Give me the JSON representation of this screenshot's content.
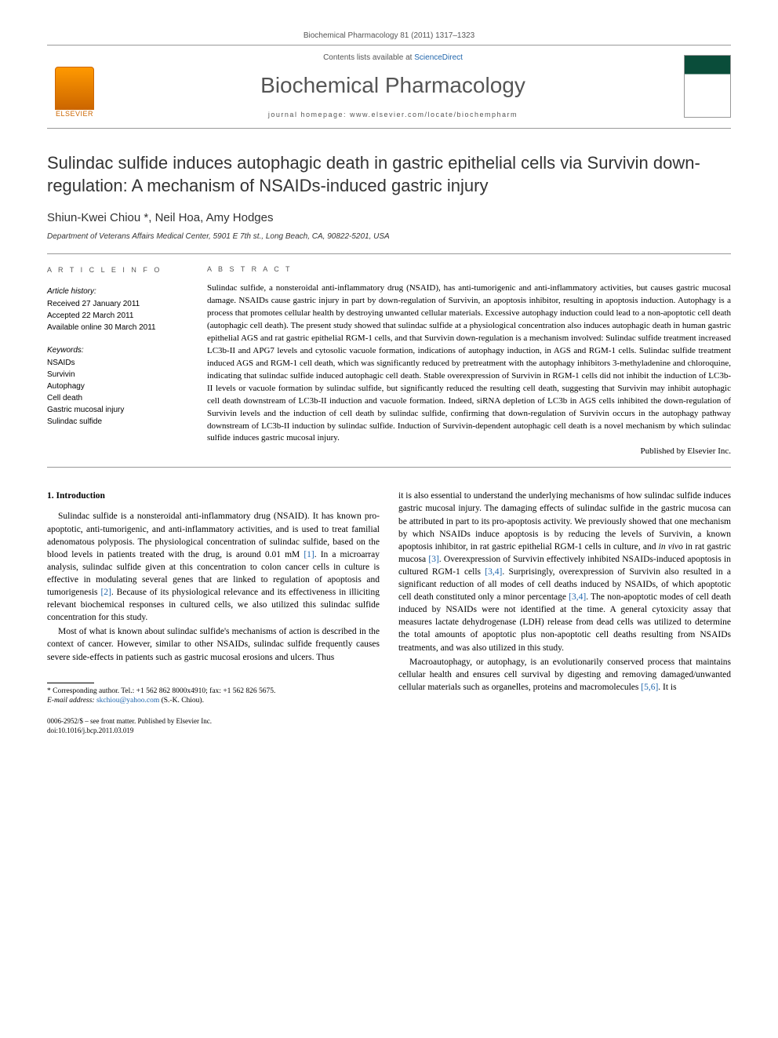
{
  "header": {
    "journal_ref_line": "Biochemical Pharmacology 81 (2011) 1317–1323",
    "contents_prefix": "Contents lists available at ",
    "contents_link": "ScienceDirect",
    "journal_name": "Biochemical Pharmacology",
    "homepage_prefix": "journal homepage: ",
    "homepage_url": "www.elsevier.com/locate/biochempharm",
    "elsevier_label": "ELSEVIER"
  },
  "title": "Sulindac sulfide induces autophagic death in gastric epithelial cells via Survivin down-regulation: A mechanism of NSAIDs-induced gastric injury",
  "authors": "Shiun-Kwei Chiou *, Neil Hoa, Amy Hodges",
  "affiliation": "Department of Veterans Affairs Medical Center, 5901 E 7th st., Long Beach, CA, 90822-5201, USA",
  "info": {
    "heading": "A R T I C L E   I N F O",
    "history_label": "Article history:",
    "received": "Received 27 January 2011",
    "accepted": "Accepted 22 March 2011",
    "online": "Available online 30 March 2011",
    "keywords_label": "Keywords:",
    "keywords": [
      "NSAIDs",
      "Survivin",
      "Autophagy",
      "Cell death",
      "Gastric mucosal injury",
      "Sulindac sulfide"
    ]
  },
  "abstract": {
    "heading": "A B S T R A C T",
    "text": "Sulindac sulfide, a nonsteroidal anti-inflammatory drug (NSAID), has anti-tumorigenic and anti-inflammatory activities, but causes gastric mucosal damage. NSAIDs cause gastric injury in part by down-regulation of Survivin, an apoptosis inhibitor, resulting in apoptosis induction. Autophagy is a process that promotes cellular health by destroying unwanted cellular materials. Excessive autophagy induction could lead to a non-apoptotic cell death (autophagic cell death). The present study showed that sulindac sulfide at a physiological concentration also induces autophagic death in human gastric epithelial AGS and rat gastric epithelial RGM-1 cells, and that Survivin down-regulation is a mechanism involved: Sulindac sulfide treatment increased LC3b-II and APG7 levels and cytosolic vacuole formation, indications of autophagy induction, in AGS and RGM-1 cells. Sulindac sulfide treatment induced AGS and RGM-1 cell death, which was significantly reduced by pretreatment with the autophagy inhibitors 3-methyladenine and chloroquine, indicating that sulindac sulfide induced autophagic cell death. Stable overexpression of Survivin in RGM-1 cells did not inhibit the induction of LC3b-II levels or vacuole formation by sulindac sulfide, but significantly reduced the resulting cell death, suggesting that Survivin may inhibit autophagic cell death downstream of LC3b-II induction and vacuole formation. Indeed, siRNA depletion of LC3b in AGS cells inhibited the down-regulation of Survivin levels and the induction of cell death by sulindac sulfide, confirming that down-regulation of Survivin occurs in the autophagy pathway downstream of LC3b-II induction by sulindac sulfide. Induction of Survivin-dependent autophagic cell death is a novel mechanism by which sulindac sulfide induces gastric mucosal injury.",
    "publisher": "Published by Elsevier Inc."
  },
  "body": {
    "section_heading": "1. Introduction",
    "col1_p1": "Sulindac sulfide is a nonsteroidal anti-inflammatory drug (NSAID). It has known pro-apoptotic, anti-tumorigenic, and anti-inflammatory activities, and is used to treat familial adenomatous polyposis. The physiological concentration of sulindac sulfide, based on the blood levels in patients treated with the drug, is around 0.01 mM [1]. In a microarray analysis, sulindac sulfide given at this concentration to colon cancer cells in culture is effective in modulating several genes that are linked to regulation of apoptosis and tumorigenesis [2]. Because of its physiological relevance and its effectiveness in illiciting relevant biochemical responses in cultured cells, we also utilized this sulindac sulfide concentration for this study.",
    "col1_p2": "Most of what is known about sulindac sulfide's mechanisms of action is described in the context of cancer. However, similar to other NSAIDs, sulindac sulfide frequently causes severe side-effects in patients such as gastric mucosal erosions and ulcers. Thus",
    "col2_p1": "it is also essential to understand the underlying mechanisms of how sulindac sulfide induces gastric mucosal injury. The damaging effects of sulindac sulfide in the gastric mucosa can be attributed in part to its pro-apoptosis activity. We previously showed that one mechanism by which NSAIDs induce apoptosis is by reducing the levels of Survivin, a known apoptosis inhibitor, in rat gastric epithelial RGM-1 cells in culture, and in vivo in rat gastric mucosa [3]. Overexpression of Survivin effectively inhibited NSAIDs-induced apoptosis in cultured RGM-1 cells [3,4]. Surprisingly, overexpression of Survivin also resulted in a significant reduction of all modes of cell deaths induced by NSAIDs, of which apoptotic cell death constituted only a minor percentage [3,4]. The non-apoptotic modes of cell death induced by NSAIDs were not identified at the time. A general cytoxicity assay that measures lactate dehydrogenase (LDH) release from dead cells was utilized to determine the total amounts of apoptotic plus non-apoptotic cell deaths resulting from NSAIDs treatments, and was also utilized in this study.",
    "col2_p2": "Macroautophagy, or autophagy, is an evolutionarily conserved process that maintains cellular health and ensures cell survival by digesting and removing damaged/unwanted cellular materials such as organelles, proteins and macromolecules [5,6]. It is"
  },
  "footnote": {
    "corr": "* Corresponding author. Tel.: +1 562 862 8000x4910; fax: +1 562 826 5675.",
    "email_label": "E-mail address: ",
    "email": "skchiou@yahoo.com",
    "email_suffix": " (S.-K. Chiou)."
  },
  "footer": {
    "issn": "0006-2952/$ – see front matter. Published by Elsevier Inc.",
    "doi": "doi:10.1016/j.bcp.2011.03.019"
  },
  "refs": {
    "r1": "[1]",
    "r2": "[2]",
    "r3": "[3]",
    "r34": "[3,4]",
    "r56": "[5,6]"
  }
}
